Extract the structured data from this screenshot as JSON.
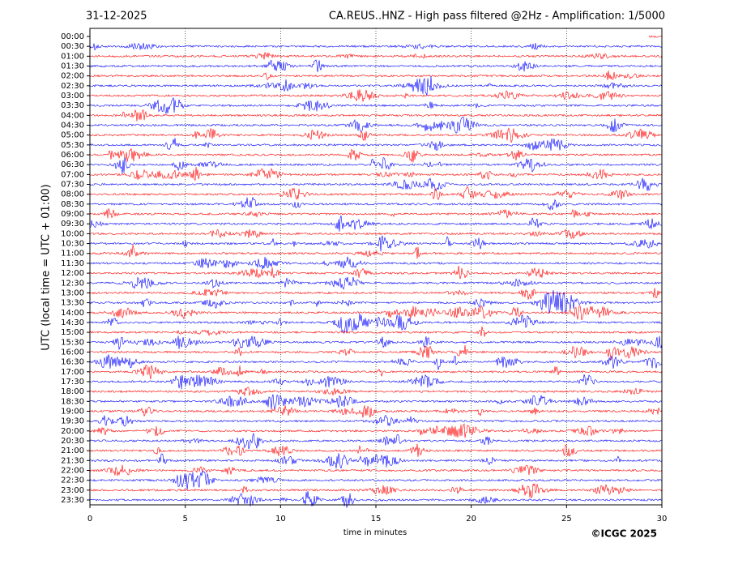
{
  "chart_data": {
    "type": "helicorder",
    "title": "CA.REUS..HNZ - High pass filtered @2Hz - Amplification: 1/5000",
    "date": "31-12-2025",
    "ylabel": "UTC (local time = UTC + 01:00)",
    "xlabel": "time in minutes",
    "credit": "©ICGC 2025",
    "categories": [
      "00:00",
      "00:30",
      "01:00",
      "01:30",
      "02:00",
      "02:30",
      "03:00",
      "03:30",
      "04:00",
      "04:30",
      "05:00",
      "05:30",
      "06:00",
      "06:30",
      "07:00",
      "07:30",
      "08:00",
      "08:30",
      "09:00",
      "09:30",
      "10:00",
      "10:30",
      "11:00",
      "11:30",
      "12:00",
      "12:30",
      "13:00",
      "13:30",
      "14:00",
      "14:30",
      "15:00",
      "15:30",
      "16:00",
      "16:30",
      "17:00",
      "17:30",
      "18:00",
      "18:30",
      "19:00",
      "19:30",
      "20:00",
      "20:30",
      "21:00",
      "21:30",
      "22:00",
      "22:30",
      "23:00",
      "23:30"
    ],
    "colors": [
      "#ff0000",
      "#0000ff"
    ],
    "xlim": [
      0,
      30
    ],
    "xticks": [
      0,
      5,
      10,
      15,
      20,
      25,
      30
    ],
    "grid": true
  }
}
